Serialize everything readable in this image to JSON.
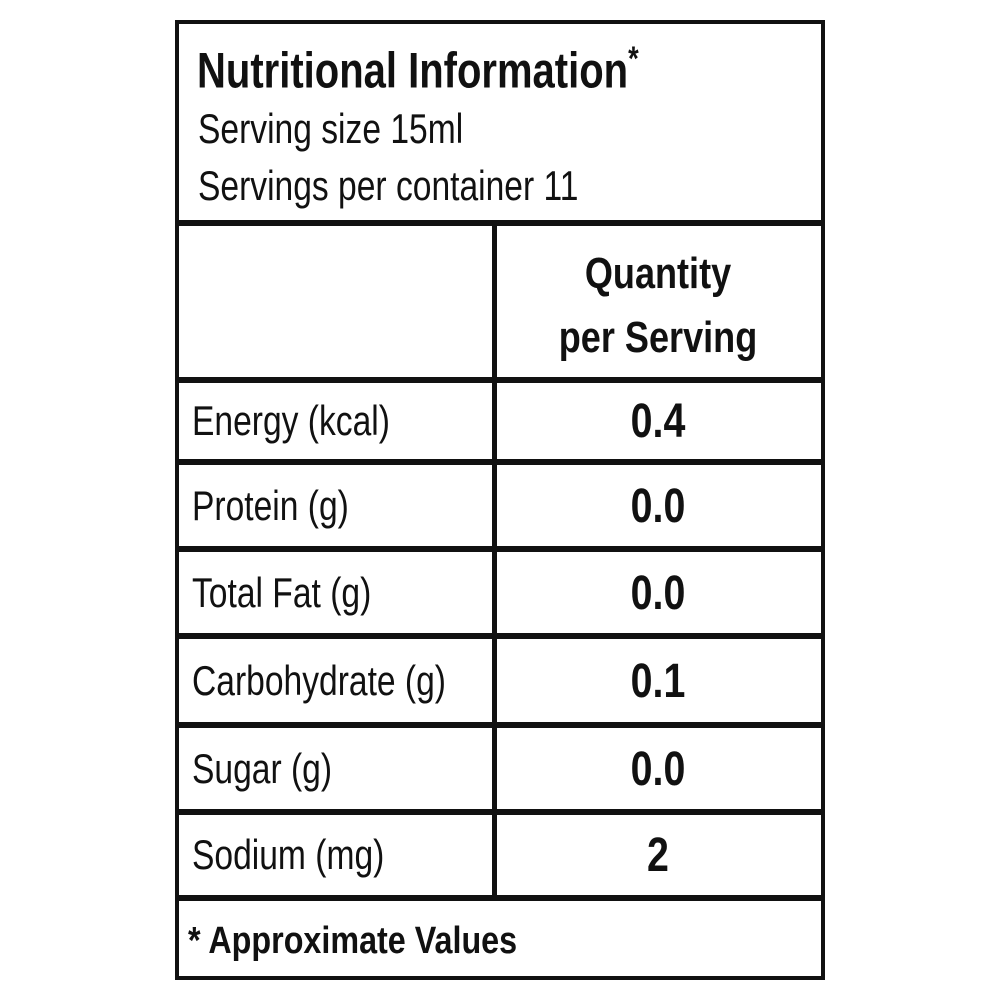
{
  "header": {
    "title": "Nutritional Information",
    "title_mark": "*",
    "serving_size": "Serving size 15ml",
    "servings_per_container": "Servings per container 11"
  },
  "table": {
    "column_header": [
      "Quantity",
      "per Serving"
    ],
    "rows": [
      [
        "Energy (kcal)",
        "0.4"
      ],
      [
        "Protein (g)",
        "0.0"
      ],
      [
        "Total Fat (g)",
        "0.0"
      ],
      [
        "Carbohydrate (g)",
        "0.1"
      ],
      [
        "Sugar (g)",
        "0.0"
      ],
      [
        "Sodium (mg)",
        "2"
      ]
    ]
  },
  "footnote": "* Approximate Values"
}
